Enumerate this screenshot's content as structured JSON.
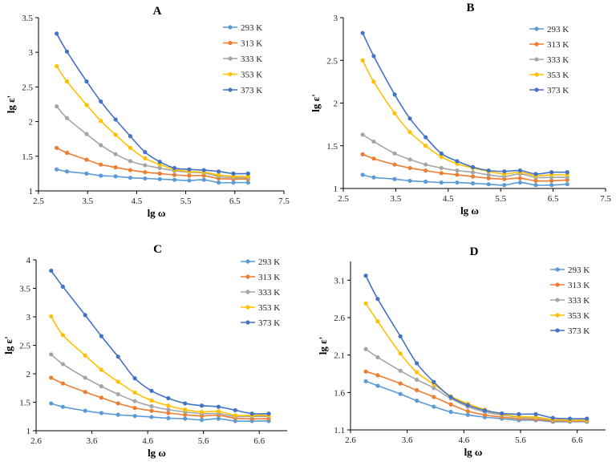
{
  "chart_data": [
    {
      "type": "line",
      "title": "A",
      "xlabel": "lg ω",
      "ylabel": "lg ε'",
      "xlim": [
        2.5,
        7.5
      ],
      "ylim": [
        1,
        3.5
      ],
      "xticks": [
        "2.5",
        "3.5",
        "4.5",
        "5.5",
        "6.5",
        "7.5"
      ],
      "yticks": [
        "1",
        "1.5",
        "2",
        "2.5",
        "3",
        "3.5"
      ],
      "x": [
        2.87,
        3.08,
        3.48,
        3.77,
        4.07,
        4.37,
        4.67,
        4.97,
        5.27,
        5.57,
        5.87,
        6.17,
        6.47,
        6.77
      ],
      "series": [
        {
          "name": "293 K",
          "values": [
            1.31,
            1.28,
            1.25,
            1.22,
            1.21,
            1.19,
            1.18,
            1.17,
            1.16,
            1.15,
            1.16,
            1.12,
            1.12,
            1.12
          ]
        },
        {
          "name": "313 K",
          "values": [
            1.62,
            1.55,
            1.45,
            1.38,
            1.34,
            1.3,
            1.27,
            1.25,
            1.23,
            1.22,
            1.22,
            1.18,
            1.17,
            1.17
          ]
        },
        {
          "name": "333 K",
          "values": [
            2.22,
            2.05,
            1.82,
            1.66,
            1.53,
            1.43,
            1.37,
            1.33,
            1.29,
            1.27,
            1.26,
            1.21,
            1.19,
            1.19
          ]
        },
        {
          "name": "353 K",
          "values": [
            2.8,
            2.58,
            2.24,
            2.01,
            1.81,
            1.62,
            1.47,
            1.38,
            1.31,
            1.28,
            1.27,
            1.23,
            1.21,
            1.21
          ]
        },
        {
          "name": "373 K",
          "values": [
            3.27,
            3.01,
            2.58,
            2.29,
            2.03,
            1.79,
            1.56,
            1.42,
            1.33,
            1.31,
            1.3,
            1.28,
            1.25,
            1.25
          ]
        }
      ]
    },
    {
      "type": "line",
      "title": "B",
      "xlabel": "lg ω",
      "ylabel": "lg ε'",
      "xlim": [
        2.5,
        7.5
      ],
      "ylim": [
        1,
        3
      ],
      "xticks": [
        "2.5",
        "3.5",
        "4.5",
        "5.5",
        "6.5",
        "7.5"
      ],
      "yticks": [
        "1",
        "1.5",
        "2",
        "2.5",
        "3"
      ],
      "x": [
        2.87,
        3.08,
        3.48,
        3.77,
        4.07,
        4.37,
        4.67,
        4.97,
        5.27,
        5.57,
        5.87,
        6.17,
        6.47,
        6.77
      ],
      "series": [
        {
          "name": "293 K",
          "values": [
            1.16,
            1.13,
            1.11,
            1.09,
            1.08,
            1.07,
            1.07,
            1.06,
            1.05,
            1.04,
            1.07,
            1.04,
            1.04,
            1.05
          ]
        },
        {
          "name": "313 K",
          "values": [
            1.4,
            1.35,
            1.28,
            1.24,
            1.21,
            1.18,
            1.16,
            1.14,
            1.12,
            1.11,
            1.12,
            1.09,
            1.09,
            1.1
          ]
        },
        {
          "name": "333 K",
          "values": [
            1.63,
            1.55,
            1.41,
            1.34,
            1.28,
            1.24,
            1.21,
            1.19,
            1.16,
            1.14,
            1.17,
            1.13,
            1.13,
            1.13
          ]
        },
        {
          "name": "353 K",
          "values": [
            2.5,
            2.25,
            1.88,
            1.66,
            1.5,
            1.37,
            1.29,
            1.24,
            1.2,
            1.17,
            1.19,
            1.15,
            1.16,
            1.16
          ]
        },
        {
          "name": "373 K",
          "values": [
            2.82,
            2.55,
            2.1,
            1.82,
            1.6,
            1.41,
            1.32,
            1.25,
            1.21,
            1.2,
            1.21,
            1.17,
            1.19,
            1.19
          ]
        }
      ]
    },
    {
      "type": "line",
      "title": "C",
      "xlabel": "lg ω",
      "ylabel": "lg ε'",
      "xlim": [
        2.6,
        7.1
      ],
      "ylim": [
        1,
        4
      ],
      "xticks": [
        "2.6",
        "3.6",
        "4.6",
        "5.6",
        "6.6"
      ],
      "xtick_values": [
        2.6,
        3.6,
        4.6,
        5.6,
        6.6
      ],
      "yticks": [
        "1",
        "1.5",
        "2",
        "2.5",
        "3",
        "3.5",
        "4"
      ],
      "x": [
        2.87,
        3.08,
        3.48,
        3.77,
        4.07,
        4.37,
        4.67,
        4.97,
        5.27,
        5.57,
        5.87,
        6.17,
        6.47,
        6.77
      ],
      "series": [
        {
          "name": "293 K",
          "values": [
            1.48,
            1.42,
            1.35,
            1.31,
            1.28,
            1.26,
            1.24,
            1.22,
            1.21,
            1.19,
            1.21,
            1.17,
            1.17,
            1.17
          ]
        },
        {
          "name": "313 K",
          "values": [
            1.93,
            1.83,
            1.68,
            1.58,
            1.48,
            1.4,
            1.35,
            1.31,
            1.28,
            1.26,
            1.27,
            1.22,
            1.21,
            1.21
          ]
        },
        {
          "name": "333 K",
          "values": [
            2.34,
            2.17,
            1.93,
            1.78,
            1.64,
            1.52,
            1.43,
            1.37,
            1.33,
            1.3,
            1.3,
            1.25,
            1.25,
            1.25
          ]
        },
        {
          "name": "353 K",
          "values": [
            3.01,
            2.68,
            2.32,
            2.07,
            1.86,
            1.67,
            1.53,
            1.44,
            1.37,
            1.33,
            1.34,
            1.27,
            1.27,
            1.27
          ]
        },
        {
          "name": "373 K",
          "values": [
            3.81,
            3.53,
            3.03,
            2.66,
            2.3,
            1.92,
            1.7,
            1.57,
            1.48,
            1.44,
            1.42,
            1.36,
            1.3,
            1.3
          ]
        }
      ]
    },
    {
      "type": "line",
      "title": "D",
      "xlabel": "lg ω",
      "ylabel": "lg ε'",
      "xlim": [
        2.6,
        7.1
      ],
      "ylim": [
        1.1,
        3.35
      ],
      "xticks": [
        "2.6",
        "3.6",
        "4.6",
        "5.6",
        "6.6"
      ],
      "xtick_values": [
        2.6,
        3.6,
        4.6,
        5.6,
        6.6
      ],
      "yticks": [
        "1.1",
        "1.6",
        "2.1",
        "2.6",
        "3.1"
      ],
      "ytick_values": [
        1.1,
        1.6,
        2.1,
        2.6,
        3.1
      ],
      "x": [
        2.87,
        3.08,
        3.48,
        3.77,
        4.07,
        4.37,
        4.67,
        4.97,
        5.27,
        5.57,
        5.87,
        6.17,
        6.47,
        6.77
      ],
      "series": [
        {
          "name": "293 K",
          "values": [
            1.75,
            1.69,
            1.58,
            1.49,
            1.41,
            1.34,
            1.3,
            1.27,
            1.25,
            1.23,
            1.23,
            1.21,
            1.21,
            1.21
          ]
        },
        {
          "name": "313 K",
          "values": [
            1.88,
            1.83,
            1.72,
            1.63,
            1.54,
            1.44,
            1.35,
            1.3,
            1.27,
            1.25,
            1.24,
            1.22,
            1.22,
            1.22
          ]
        },
        {
          "name": "333 K",
          "values": [
            2.18,
            2.07,
            1.89,
            1.77,
            1.66,
            1.52,
            1.41,
            1.34,
            1.3,
            1.27,
            1.26,
            1.23,
            1.23,
            1.23
          ]
        },
        {
          "name": "353 K",
          "values": [
            2.79,
            2.55,
            2.12,
            1.87,
            1.71,
            1.55,
            1.45,
            1.37,
            1.31,
            1.28,
            1.27,
            1.24,
            1.23,
            1.23
          ]
        },
        {
          "name": "373 K",
          "values": [
            3.16,
            2.85,
            2.35,
            1.99,
            1.74,
            1.54,
            1.43,
            1.36,
            1.32,
            1.31,
            1.31,
            1.26,
            1.25,
            1.25
          ]
        }
      ]
    }
  ],
  "colors": [
    "#5B9BD5",
    "#ED7D31",
    "#A5A5A5",
    "#FFC000",
    "#4472C4"
  ]
}
